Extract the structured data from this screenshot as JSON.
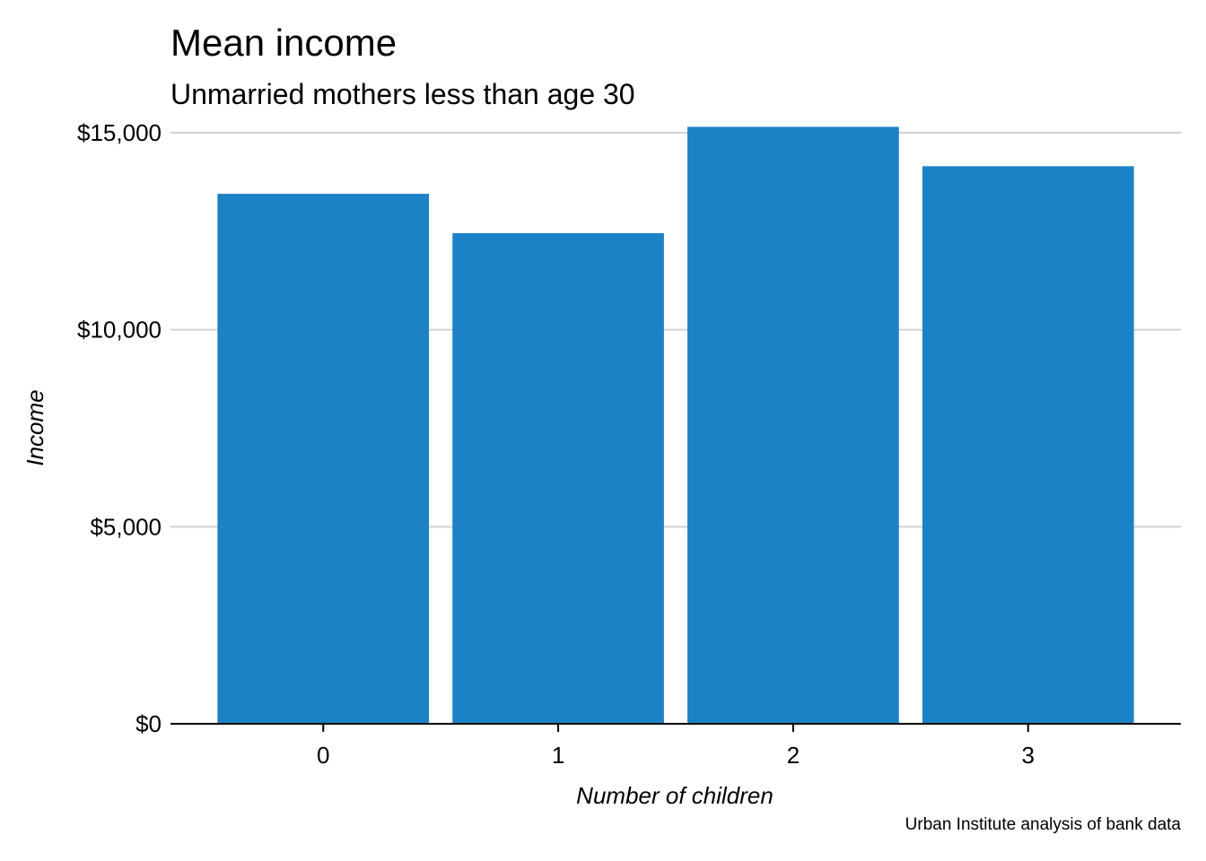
{
  "chart_data": {
    "type": "bar",
    "title": "Mean income",
    "subtitle": "Unmarried mothers less than age 30",
    "xlabel": "Number of children",
    "ylabel": "Income",
    "caption": "Urban Institute analysis of bank data",
    "categories": [
      "0",
      "1",
      "2",
      "3"
    ],
    "values": [
      13450,
      12450,
      15150,
      14150
    ],
    "ylim": [
      0,
      15000
    ],
    "yticks": [
      0,
      5000,
      10000,
      15000
    ],
    "ytick_labels": [
      "$0",
      "$5,000",
      "$10,000",
      "$15,000"
    ],
    "grid": "horizontal",
    "legend": "none",
    "colors": {
      "bar": "#1b82c6",
      "grid": "#d2d2d2",
      "axis": "#000000"
    }
  }
}
